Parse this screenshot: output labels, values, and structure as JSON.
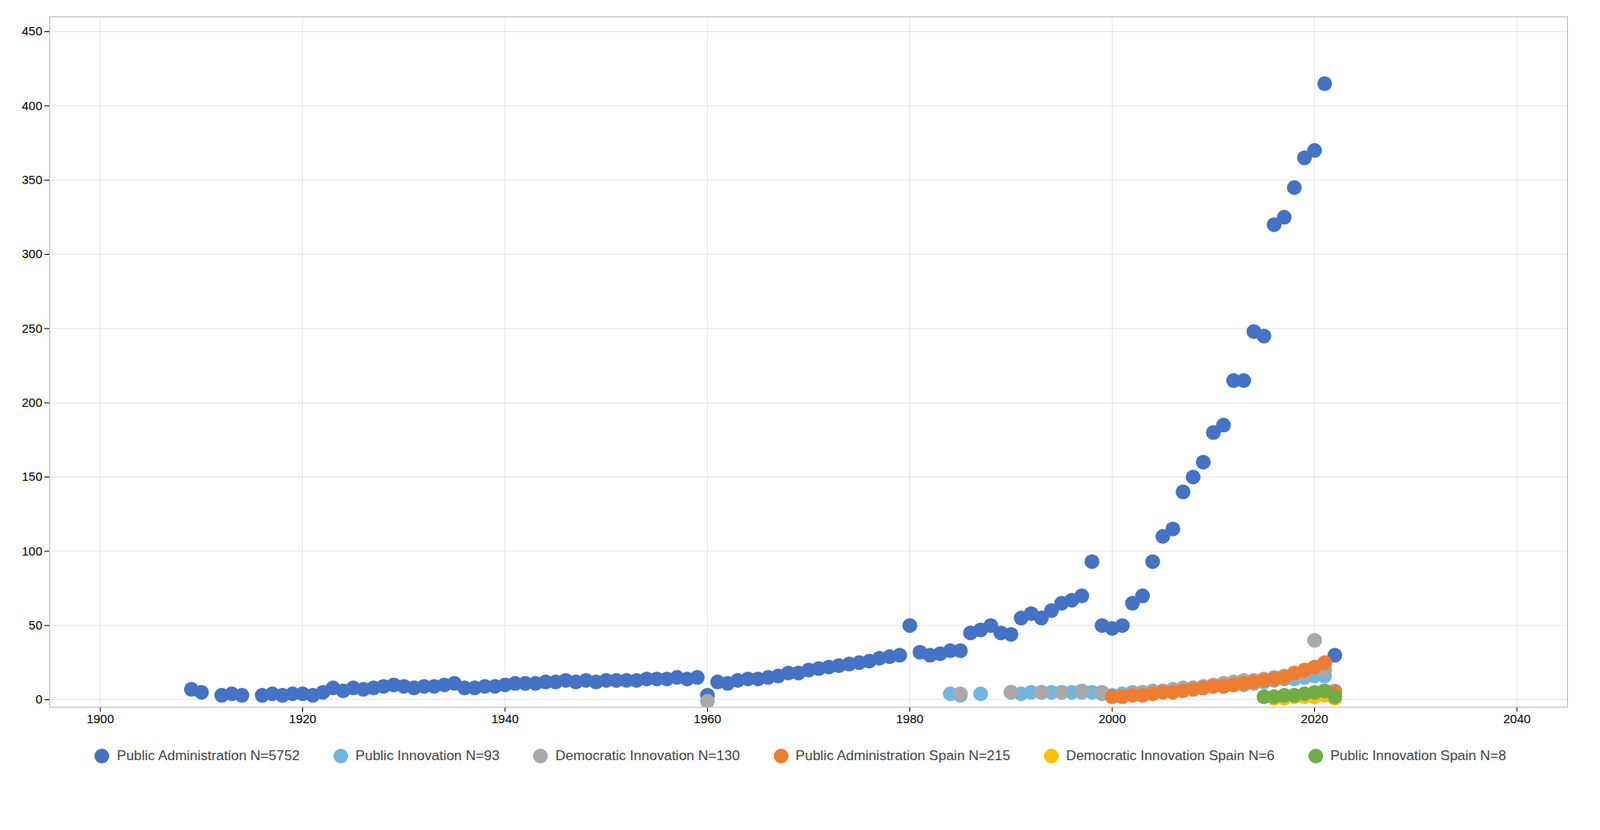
{
  "chart_data": {
    "type": "scatter",
    "grid": true,
    "legend": "bottom",
    "xlim": [
      1895,
      2045
    ],
    "xticks": [
      1900,
      1920,
      1940,
      1960,
      1980,
      2000,
      2020,
      2040
    ],
    "ylim": [
      -5,
      460
    ],
    "yticks": [
      0,
      50,
      100,
      150,
      200,
      250,
      300,
      350,
      400,
      450
    ],
    "series": [
      {
        "name": "Public Administration N=5752",
        "color": "#4472C4",
        "marker": "circle",
        "x": [
          1909,
          1910,
          1912,
          1913,
          1914,
          1916,
          1917,
          1918,
          1919,
          1920,
          1921,
          1922,
          1923,
          1924,
          1925,
          1926,
          1927,
          1928,
          1929,
          1930,
          1931,
          1932,
          1933,
          1934,
          1935,
          1936,
          1937,
          1938,
          1939,
          1940,
          1941,
          1942,
          1943,
          1944,
          1945,
          1946,
          1947,
          1948,
          1949,
          1950,
          1951,
          1952,
          1953,
          1954,
          1955,
          1956,
          1957,
          1958,
          1959,
          1960,
          1961,
          1962,
          1963,
          1964,
          1965,
          1966,
          1967,
          1968,
          1969,
          1970,
          1971,
          1972,
          1973,
          1974,
          1975,
          1976,
          1977,
          1978,
          1979,
          1980,
          1981,
          1982,
          1983,
          1984,
          1985,
          1986,
          1987,
          1988,
          1989,
          1990,
          1991,
          1992,
          1993,
          1994,
          1995,
          1996,
          1997,
          1998,
          1999,
          2000,
          2001,
          2002,
          2003,
          2004,
          2005,
          2006,
          2007,
          2008,
          2009,
          2010,
          2011,
          2012,
          2013,
          2014,
          2015,
          2016,
          2017,
          2018,
          2019,
          2020,
          2021,
          2022
        ],
        "values": [
          7,
          5,
          3,
          4,
          3,
          3,
          4,
          3,
          4,
          4,
          3,
          5,
          8,
          6,
          8,
          7,
          8,
          9,
          10,
          9,
          8,
          9,
          9,
          10,
          11,
          8,
          8,
          9,
          9,
          10,
          11,
          11,
          11,
          12,
          12,
          13,
          12,
          13,
          12,
          13,
          13,
          13,
          13,
          14,
          14,
          14,
          15,
          14,
          15,
          3,
          12,
          11,
          13,
          14,
          14,
          15,
          16,
          18,
          18,
          20,
          21,
          22,
          23,
          24,
          25,
          26,
          28,
          29,
          30,
          50,
          32,
          30,
          31,
          33,
          33,
          45,
          47,
          50,
          45,
          44,
          55,
          58,
          55,
          60,
          65,
          67,
          70,
          93,
          50,
          48,
          50,
          65,
          70,
          93,
          110,
          115,
          140,
          150,
          160,
          180,
          185,
          215,
          215,
          248,
          245,
          320,
          325,
          345,
          365,
          370,
          415,
          30
        ]
      },
      {
        "name": "Public Innovation N=93",
        "color": "#70B7E0",
        "marker": "circle",
        "x": [
          1984,
          1985,
          1987,
          1990,
          1991,
          1992,
          1993,
          1994,
          1995,
          1996,
          1997,
          1998,
          1999,
          2000,
          2001,
          2002,
          2003,
          2004,
          2005,
          2006,
          2007,
          2008,
          2009,
          2010,
          2011,
          2012,
          2013,
          2014,
          2015,
          2016,
          2017,
          2018,
          2019,
          2020,
          2021,
          2022
        ],
        "values": [
          4,
          3,
          4,
          5,
          4,
          5,
          5,
          5,
          5,
          5,
          5,
          5,
          4,
          3,
          4,
          5,
          5,
          5,
          6,
          6,
          7,
          8,
          8,
          9,
          9,
          10,
          10,
          11,
          12,
          13,
          14,
          14,
          15,
          16,
          16,
          5
        ]
      },
      {
        "name": "Democratic Innovation N=130",
        "color": "#A9A9A9",
        "marker": "circle",
        "x": [
          1960,
          1985,
          1990,
          1993,
          1995,
          1997,
          1999,
          2001,
          2002,
          2003,
          2004,
          2005,
          2006,
          2007,
          2008,
          2009,
          2010,
          2011,
          2012,
          2013,
          2014,
          2015,
          2016,
          2017,
          2018,
          2019,
          2020,
          2021,
          2022
        ],
        "values": [
          -1,
          4,
          5,
          5,
          5,
          6,
          5,
          3,
          4,
          5,
          6,
          6,
          7,
          8,
          8,
          9,
          10,
          11,
          12,
          13,
          13,
          14,
          15,
          16,
          17,
          18,
          40,
          20,
          6
        ]
      },
      {
        "name": "Public Administration Spain N=215",
        "color": "#ED7D31",
        "marker": "circle",
        "x": [
          2000,
          2001,
          2002,
          2003,
          2004,
          2005,
          2006,
          2007,
          2008,
          2009,
          2010,
          2011,
          2012,
          2013,
          2014,
          2015,
          2016,
          2017,
          2018,
          2019,
          2020,
          2021,
          2022
        ],
        "values": [
          2,
          2,
          3,
          3,
          4,
          5,
          5,
          6,
          7,
          8,
          9,
          9,
          10,
          11,
          12,
          13,
          14,
          15,
          18,
          20,
          22,
          25,
          5
        ]
      },
      {
        "name": "Democratic Innovation Spain N=6",
        "color": "#FFC000",
        "marker": "circle",
        "x": [
          2016,
          2017,
          2018,
          2019,
          2020,
          2021,
          2022
        ],
        "values": [
          1,
          1,
          2,
          2,
          2,
          3,
          1
        ]
      },
      {
        "name": "Public Innovation Spain N=8",
        "color": "#70AD47",
        "marker": "circle",
        "x": [
          2015,
          2016,
          2017,
          2018,
          2019,
          2020,
          2021,
          2022
        ],
        "values": [
          2,
          2,
          3,
          3,
          4,
          5,
          6,
          2
        ]
      }
    ]
  }
}
